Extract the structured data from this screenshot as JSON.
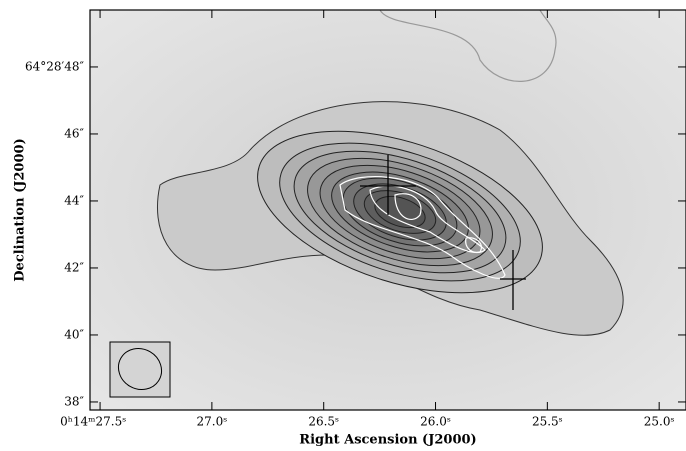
{
  "chart_data": {
    "type": "image",
    "xlabel": "Right Ascension (J2000)",
    "ylabel": "Declination (J2000)",
    "xlim": [
      27.545,
      24.88
    ],
    "ylim": [
      37.76,
      49.7
    ],
    "xticks": [
      {
        "value": 27.5,
        "label": "0ʰ14ᵐ27.5ˢ"
      },
      {
        "value": 27.0,
        "label": "27.0ˢ"
      },
      {
        "value": 26.5,
        "label": "26.5ˢ"
      },
      {
        "value": 26.0,
        "label": "26.0ˢ"
      },
      {
        "value": 25.5,
        "label": "25.5ˢ"
      },
      {
        "value": 25.0,
        "label": "25.0ˢ"
      }
    ],
    "yticks": [
      {
        "value": 38,
        "label": "38″"
      },
      {
        "value": 40,
        "label": "40″"
      },
      {
        "value": 42,
        "label": "42″"
      },
      {
        "value": 44,
        "label": "44″"
      },
      {
        "value": 46,
        "label": "46″"
      },
      {
        "value": 48,
        "label": "64°28′48″"
      }
    ]
  }
}
